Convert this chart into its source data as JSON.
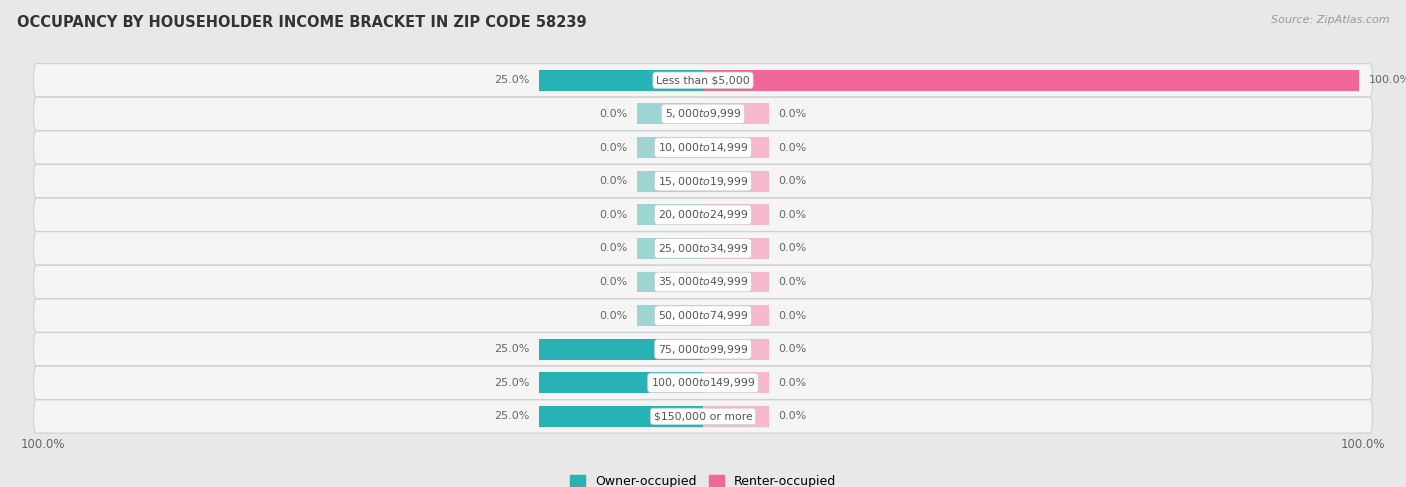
{
  "title": "OCCUPANCY BY HOUSEHOLDER INCOME BRACKET IN ZIP CODE 58239",
  "source": "Source: ZipAtlas.com",
  "categories": [
    "Less than $5,000",
    "$5,000 to $9,999",
    "$10,000 to $14,999",
    "$15,000 to $19,999",
    "$20,000 to $24,999",
    "$25,000 to $34,999",
    "$35,000 to $49,999",
    "$50,000 to $74,999",
    "$75,000 to $99,999",
    "$100,000 to $149,999",
    "$150,000 or more"
  ],
  "owner_values": [
    25.0,
    0.0,
    0.0,
    0.0,
    0.0,
    0.0,
    0.0,
    0.0,
    25.0,
    25.0,
    25.0
  ],
  "renter_values": [
    100.0,
    0.0,
    0.0,
    0.0,
    0.0,
    0.0,
    0.0,
    0.0,
    0.0,
    0.0,
    0.0
  ],
  "owner_color_full": "#27b3b3",
  "owner_color_zero": "#9dd4d4",
  "renter_color_full": "#f06898",
  "renter_color_zero": "#f5b8cc",
  "bg_color": "#e8e8e8",
  "row_bg_color": "#f5f5f5",
  "row_edge_color": "#d0d0d0",
  "label_color": "#555555",
  "title_color": "#333333",
  "value_label_color": "#666666",
  "source_color": "#999999",
  "xlim_left": -100,
  "xlim_right": 100,
  "zero_stub": 10,
  "legend_owner": "Owner-occupied",
  "legend_renter": "Renter-occupied"
}
